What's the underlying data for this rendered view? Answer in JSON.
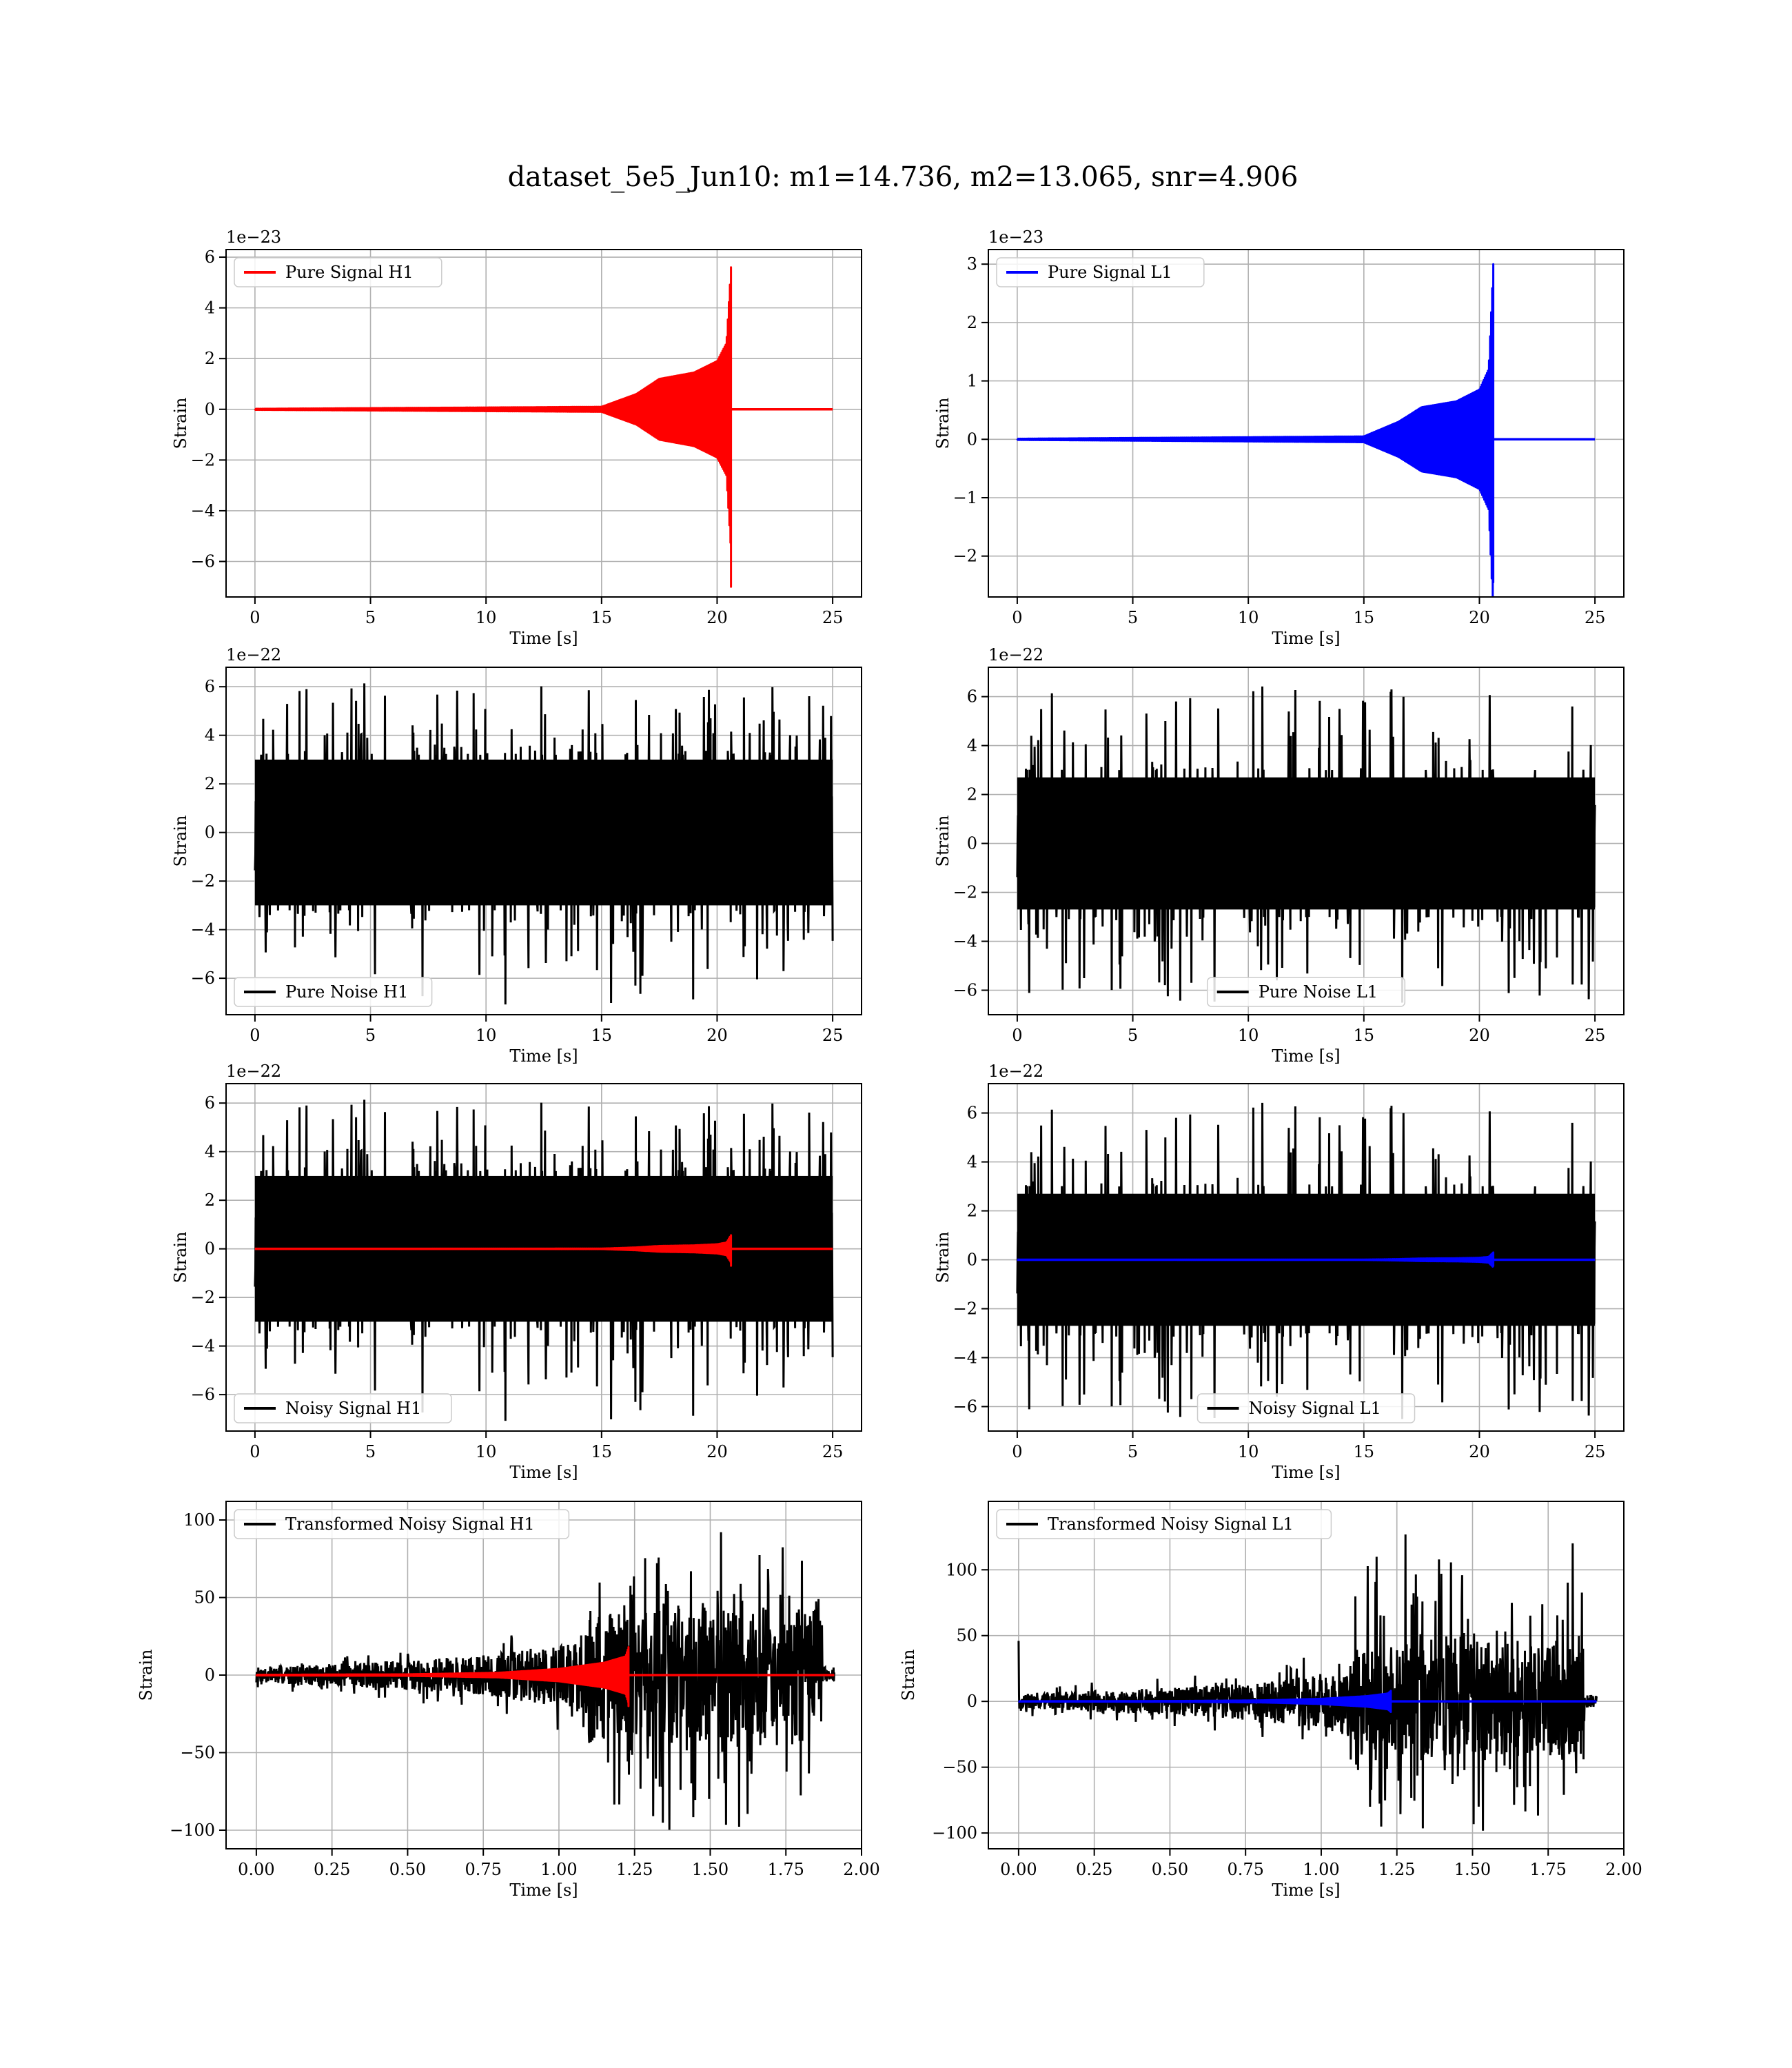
{
  "title": "dataset_5e5_Jun10: m1=14.736, m2=13.065, snr=4.906",
  "colors": {
    "h1": "#ff0000",
    "l1": "#0000ff",
    "noise": "#000000",
    "grid": "#b0b0b0"
  },
  "chart_data": [
    {
      "id": "pure-signal-h1",
      "type": "line",
      "row": 0,
      "col": 0,
      "xlabel": "Time [s]",
      "ylabel": "Strain",
      "offset_text": "1e−23",
      "xlim": [
        -1.25,
        26.25
      ],
      "ylim": [
        -7.4,
        6.3
      ],
      "xticks": [
        0,
        5,
        10,
        15,
        20,
        25
      ],
      "xtick_labels": [
        "0",
        "5",
        "10",
        "15",
        "20",
        "25"
      ],
      "yticks": [
        -6,
        -4,
        -2,
        0,
        2,
        4,
        6
      ],
      "ytick_labels": [
        "−6",
        "−4",
        "−2",
        "0",
        "2",
        "4",
        "6"
      ],
      "legend": {
        "label": "Pure Signal H1",
        "color": "#ff0000",
        "position": "upper-left"
      },
      "series": [
        {
          "name": "Pure Signal H1",
          "color": "#ff0000",
          "kind": "chirp",
          "x_range": [
            0,
            25
          ],
          "merger_x": 20.6,
          "peak_up": 5.6,
          "peak_down": -7.0,
          "envelope": [
            [
              0,
              0.02
            ],
            [
              15,
              0.1
            ],
            [
              16.5,
              0.6
            ],
            [
              17.5,
              1.2
            ],
            [
              19,
              1.45
            ],
            [
              20,
              1.9
            ],
            [
              20.4,
              2.6
            ],
            [
              20.6,
              5.6
            ]
          ]
        }
      ]
    },
    {
      "id": "pure-signal-l1",
      "type": "line",
      "row": 0,
      "col": 1,
      "xlabel": "Time [s]",
      "ylabel": "Strain",
      "offset_text": "1e−23",
      "xlim": [
        -1.25,
        26.25
      ],
      "ylim": [
        -2.7,
        3.25
      ],
      "xticks": [
        0,
        5,
        10,
        15,
        20,
        25
      ],
      "xtick_labels": [
        "0",
        "5",
        "10",
        "15",
        "20",
        "25"
      ],
      "yticks": [
        -2,
        -1,
        0,
        1,
        2,
        3
      ],
      "ytick_labels": [
        "−2",
        "−1",
        "0",
        "1",
        "2",
        "3"
      ],
      "legend": {
        "label": "Pure Signal L1",
        "color": "#0000ff",
        "position": "upper-left"
      },
      "series": [
        {
          "name": "Pure Signal L1",
          "color": "#0000ff",
          "kind": "chirp",
          "x_range": [
            0,
            25
          ],
          "merger_x": 20.6,
          "peak_up": 3.0,
          "peak_down": -2.45,
          "envelope": [
            [
              0,
              0.01
            ],
            [
              15,
              0.05
            ],
            [
              16.5,
              0.3
            ],
            [
              17.5,
              0.55
            ],
            [
              19,
              0.65
            ],
            [
              20,
              0.85
            ],
            [
              20.4,
              1.2
            ],
            [
              20.6,
              3.0
            ]
          ]
        }
      ]
    },
    {
      "id": "pure-noise-h1",
      "type": "line",
      "row": 1,
      "col": 0,
      "xlabel": "Time [s]",
      "ylabel": "Strain",
      "offset_text": "1e−22",
      "xlim": [
        -1.25,
        26.25
      ],
      "ylim": [
        -7.5,
        6.8
      ],
      "xticks": [
        0,
        5,
        10,
        15,
        20,
        25
      ],
      "xtick_labels": [
        "0",
        "5",
        "10",
        "15",
        "20",
        "25"
      ],
      "yticks": [
        -6,
        -4,
        -2,
        0,
        2,
        4,
        6
      ],
      "ytick_labels": [
        "−6",
        "−4",
        "−2",
        "0",
        "2",
        "4",
        "6"
      ],
      "legend": {
        "label": "Pure Noise H1",
        "color": "#000000",
        "position": "lower-left"
      },
      "series": [
        {
          "name": "Pure Noise H1",
          "color": "#000000",
          "kind": "noise",
          "x_range": [
            0,
            25
          ],
          "seed": 11,
          "core": 3.0,
          "tail_up": [
            3.2,
            6.2
          ],
          "tail_down": [
            -3.2,
            -7.1
          ]
        }
      ]
    },
    {
      "id": "pure-noise-l1",
      "type": "line",
      "row": 1,
      "col": 1,
      "xlabel": "Time [s]",
      "ylabel": "Strain",
      "offset_text": "1e−22",
      "xlim": [
        -1.25,
        26.25
      ],
      "ylim": [
        -7.0,
        7.2
      ],
      "xticks": [
        0,
        5,
        10,
        15,
        20,
        25
      ],
      "xtick_labels": [
        "0",
        "5",
        "10",
        "15",
        "20",
        "25"
      ],
      "yticks": [
        -6,
        -4,
        -2,
        0,
        2,
        4,
        6
      ],
      "ytick_labels": [
        "−6",
        "−4",
        "−2",
        "0",
        "2",
        "4",
        "6"
      ],
      "legend": {
        "label": "Pure Noise L1",
        "color": "#000000",
        "position": "lower-center"
      },
      "series": [
        {
          "name": "Pure Noise L1",
          "color": "#000000",
          "kind": "noise",
          "x_range": [
            0,
            25
          ],
          "seed": 23,
          "core": 2.7,
          "tail_up": [
            3.0,
            6.6
          ],
          "tail_down": [
            -3.0,
            -6.6
          ]
        }
      ]
    },
    {
      "id": "noisy-signal-h1",
      "type": "line",
      "row": 2,
      "col": 0,
      "xlabel": "Time [s]",
      "ylabel": "Strain",
      "offset_text": "1e−22",
      "xlim": [
        -1.25,
        26.25
      ],
      "ylim": [
        -7.5,
        6.8
      ],
      "xticks": [
        0,
        5,
        10,
        15,
        20,
        25
      ],
      "xtick_labels": [
        "0",
        "5",
        "10",
        "15",
        "20",
        "25"
      ],
      "yticks": [
        -6,
        -4,
        -2,
        0,
        2,
        4,
        6
      ],
      "ytick_labels": [
        "−6",
        "−4",
        "−2",
        "0",
        "2",
        "4",
        "6"
      ],
      "legend": {
        "label": "Noisy Signal H1",
        "color": "#000000",
        "position": "lower-left"
      },
      "series": [
        {
          "name": "Noisy Signal H1",
          "color": "#000000",
          "kind": "noise",
          "x_range": [
            0,
            25
          ],
          "seed": 11,
          "core": 3.0,
          "tail_up": [
            3.2,
            6.2
          ],
          "tail_down": [
            -3.2,
            -7.1
          ]
        },
        {
          "color": "#ff0000",
          "kind": "chirp",
          "x_range": [
            0,
            25
          ],
          "merger_x": 20.6,
          "peak_up": 0.56,
          "peak_down": -0.7,
          "envelope": [
            [
              0,
              0.002
            ],
            [
              15,
              0.01
            ],
            [
              16.5,
              0.06
            ],
            [
              17.5,
              0.12
            ],
            [
              19,
              0.145
            ],
            [
              20,
              0.19
            ],
            [
              20.4,
              0.26
            ],
            [
              20.6,
              0.56
            ]
          ]
        }
      ]
    },
    {
      "id": "noisy-signal-l1",
      "type": "line",
      "row": 2,
      "col": 1,
      "xlabel": "Time [s]",
      "ylabel": "Strain",
      "offset_text": "1e−22",
      "xlim": [
        -1.25,
        26.25
      ],
      "ylim": [
        -7.0,
        7.2
      ],
      "xticks": [
        0,
        5,
        10,
        15,
        20,
        25
      ],
      "xtick_labels": [
        "0",
        "5",
        "10",
        "15",
        "20",
        "25"
      ],
      "yticks": [
        -6,
        -4,
        -2,
        0,
        2,
        4,
        6
      ],
      "ytick_labels": [
        "−6",
        "−4",
        "−2",
        "0",
        "2",
        "4",
        "6"
      ],
      "legend": {
        "label": "Noisy Signal L1",
        "color": "#000000",
        "position": "lower-center"
      },
      "series": [
        {
          "name": "Noisy Signal L1",
          "color": "#000000",
          "kind": "noise",
          "x_range": [
            0,
            25
          ],
          "seed": 23,
          "core": 2.7,
          "tail_up": [
            3.0,
            6.6
          ],
          "tail_down": [
            -3.0,
            -6.6
          ]
        },
        {
          "color": "#0000ff",
          "kind": "chirp",
          "x_range": [
            0,
            25
          ],
          "merger_x": 20.6,
          "peak_up": 0.3,
          "peak_down": -0.25,
          "envelope": [
            [
              0,
              0.001
            ],
            [
              15,
              0.005
            ],
            [
              16.5,
              0.03
            ],
            [
              17.5,
              0.055
            ],
            [
              19,
              0.065
            ],
            [
              20,
              0.085
            ],
            [
              20.4,
              0.12
            ],
            [
              20.6,
              0.3
            ]
          ]
        }
      ]
    },
    {
      "id": "transformed-noisy-signal-h1",
      "type": "line",
      "row": 3,
      "col": 0,
      "xlabel": "Time [s]",
      "ylabel": "Strain",
      "offset_text": "",
      "xlim": [
        -0.1,
        2.0
      ],
      "ylim": [
        -112,
        112
      ],
      "xticks": [
        0,
        0.25,
        0.5,
        0.75,
        1.0,
        1.25,
        1.5,
        1.75,
        2.0
      ],
      "xtick_labels": [
        "0.00",
        "0.25",
        "0.50",
        "0.75",
        "1.00",
        "1.25",
        "1.50",
        "1.75",
        "2.00"
      ],
      "yticks": [
        -100,
        -50,
        0,
        50,
        100
      ],
      "ytick_labels": [
        "−100",
        "−50",
        "0",
        "50",
        "100"
      ],
      "legend": {
        "label": "Transformed Noisy Signal H1",
        "color": "#000000",
        "position": "upper-left"
      },
      "series": [
        {
          "name": "Transformed Noisy Signal H1",
          "color": "#000000",
          "kind": "whitened",
          "x_range": [
            0,
            1.91
          ],
          "active_start": 1.1,
          "active_end": 1.87,
          "seed": 7,
          "pre_amp": [
            [
              0,
              5
            ],
            [
              0.35,
              8
            ],
            [
              0.7,
              12
            ],
            [
              1.0,
              20
            ],
            [
              1.1,
              28
            ]
          ],
          "active_core": 40,
          "active_peak_up": 100,
          "active_peak_down": -102,
          "post_amp": 5
        },
        {
          "color": "#ff0000",
          "kind": "chirp",
          "x_range": [
            0,
            1.91
          ],
          "merger_x": 1.23,
          "peak_up": 18,
          "peak_down": -20,
          "envelope": [
            [
              0,
              0.2
            ],
            [
              0.5,
              0.5
            ],
            [
              0.8,
              1.5
            ],
            [
              1.0,
              4
            ],
            [
              1.15,
              8
            ],
            [
              1.22,
              12
            ],
            [
              1.23,
              18
            ]
          ]
        }
      ]
    },
    {
      "id": "transformed-noisy-signal-l1",
      "type": "line",
      "row": 3,
      "col": 1,
      "xlabel": "Time [s]",
      "ylabel": "Strain",
      "offset_text": "",
      "xlim": [
        -0.1,
        2.0
      ],
      "ylim": [
        -112,
        152
      ],
      "xticks": [
        0,
        0.25,
        0.5,
        0.75,
        1.0,
        1.25,
        1.5,
        1.75,
        2.0
      ],
      "xtick_labels": [
        "0.00",
        "0.25",
        "0.50",
        "0.75",
        "1.00",
        "1.25",
        "1.50",
        "1.75",
        "2.00"
      ],
      "yticks": [
        -100,
        -50,
        0,
        50,
        100
      ],
      "ytick_labels": [
        "−100",
        "−50",
        "0",
        "50",
        "100"
      ],
      "legend": {
        "label": "Transformed Noisy Signal L1",
        "color": "#000000",
        "position": "upper-left"
      },
      "series": [
        {
          "name": "Transformed Noisy Signal L1",
          "color": "#000000",
          "kind": "whitened",
          "x_range": [
            0,
            1.91
          ],
          "active_start": 1.1,
          "active_end": 1.87,
          "seed": 19,
          "pre_amp": [
            [
              0,
              6
            ],
            [
              0.35,
              9
            ],
            [
              0.7,
              13
            ],
            [
              1.0,
              20
            ],
            [
              1.1,
              28
            ]
          ],
          "active_core": 40,
          "active_peak_up": 130,
          "active_peak_down": -102,
          "post_amp": 5,
          "spike_at_start": 46
        },
        {
          "color": "#0000ff",
          "kind": "chirp",
          "x_range": [
            0,
            1.91
          ],
          "merger_x": 1.23,
          "peak_up": 8,
          "peak_down": -8,
          "envelope": [
            [
              0,
              0.1
            ],
            [
              0.5,
              0.3
            ],
            [
              0.8,
              0.8
            ],
            [
              1.0,
              2
            ],
            [
              1.15,
              4
            ],
            [
              1.22,
              6
            ],
            [
              1.23,
              8
            ]
          ]
        }
      ]
    }
  ]
}
